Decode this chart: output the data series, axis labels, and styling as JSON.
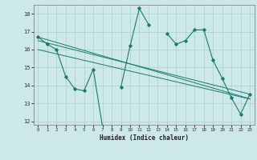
{
  "x": [
    0,
    1,
    2,
    3,
    4,
    5,
    6,
    7,
    8,
    9,
    10,
    11,
    12,
    13,
    14,
    15,
    16,
    17,
    18,
    19,
    20,
    21,
    22,
    23
  ],
  "y_main": [
    16.7,
    16.3,
    16.0,
    14.5,
    13.8,
    13.7,
    14.9,
    11.7,
    null,
    13.9,
    16.2,
    18.3,
    17.4,
    null,
    16.9,
    16.3,
    16.5,
    17.1,
    17.1,
    15.4,
    14.4,
    13.3,
    12.4,
    13.5
  ],
  "trend_upper": [
    16.7,
    16.55,
    16.4,
    16.25,
    16.1,
    15.95,
    15.8,
    15.65,
    15.5,
    15.35,
    15.2,
    15.05,
    14.9,
    14.75,
    14.6,
    14.45,
    14.3,
    14.15,
    14.0,
    13.85,
    13.7,
    13.55,
    13.4,
    13.25
  ],
  "trend_mid": [
    16.5,
    16.37,
    16.24,
    16.11,
    15.98,
    15.85,
    15.72,
    15.59,
    15.46,
    15.33,
    15.2,
    15.07,
    14.94,
    14.81,
    14.68,
    14.55,
    14.42,
    14.29,
    14.16,
    14.03,
    13.9,
    13.77,
    13.64,
    13.51
  ],
  "trend_lower": [
    16.0,
    15.88,
    15.76,
    15.64,
    15.52,
    15.4,
    15.28,
    15.16,
    15.04,
    14.92,
    14.8,
    14.68,
    14.56,
    14.44,
    14.32,
    14.2,
    14.08,
    13.96,
    13.84,
    13.72,
    13.6,
    13.48,
    13.36,
    13.24
  ],
  "color": "#1a7a6e",
  "bg_color": "#cce8e8",
  "grid_color": "#aacfcf",
  "xlabel": "Humidex (Indice chaleur)",
  "ylim": [
    11.8,
    18.5
  ],
  "xlim": [
    -0.5,
    23.5
  ],
  "yticks": [
    12,
    13,
    14,
    15,
    16,
    17,
    18
  ]
}
